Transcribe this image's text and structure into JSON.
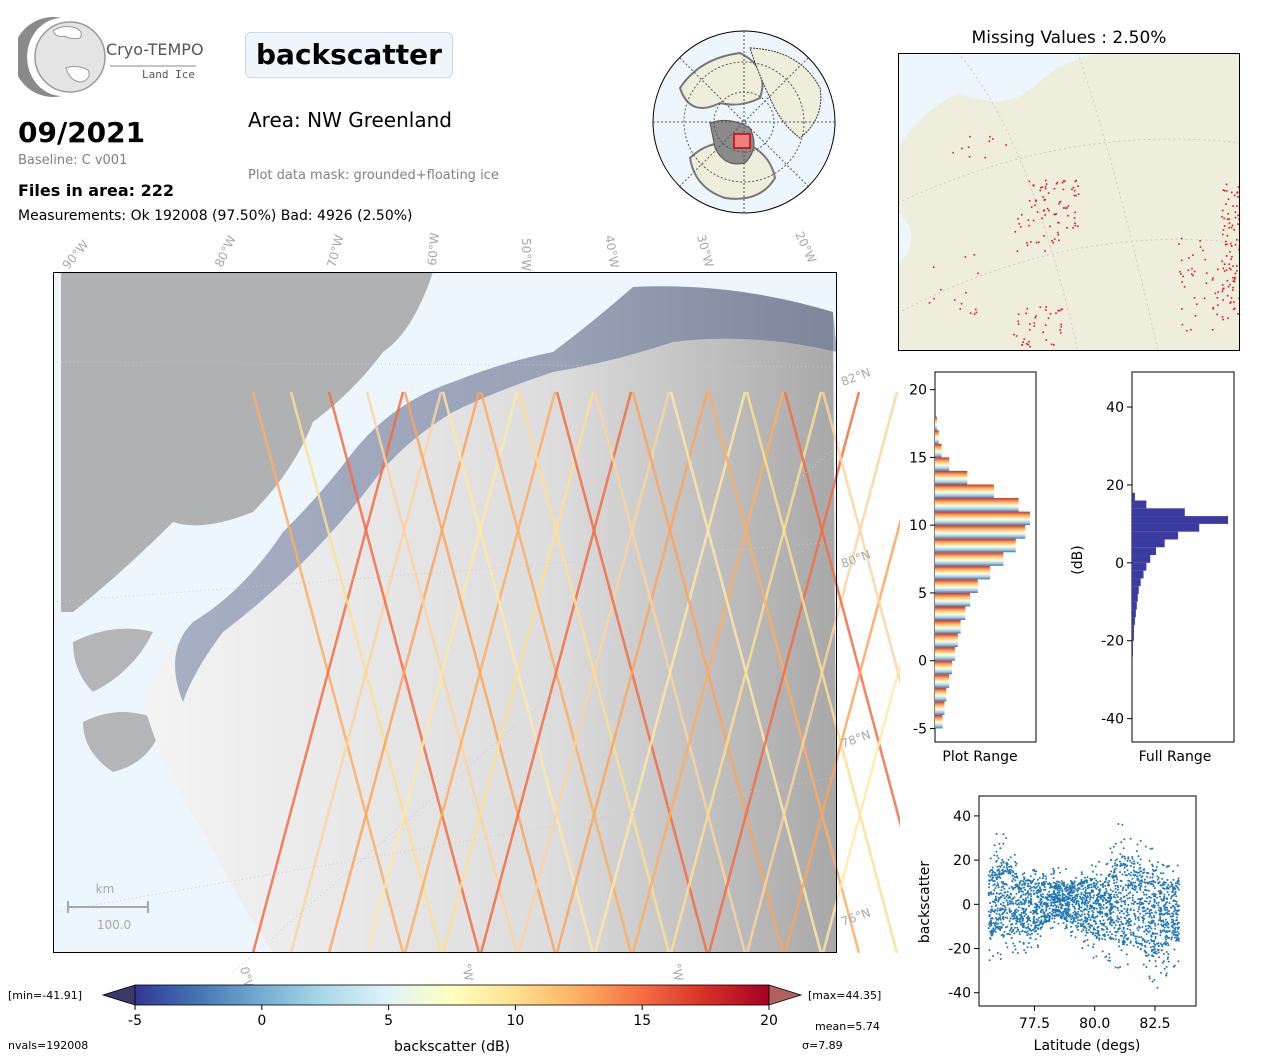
{
  "logo": {
    "name": "Cryo-TEMPO",
    "subtitle": "Land Ice"
  },
  "header": {
    "date": "09/2021",
    "baseline": "Baseline: C v001",
    "files": "Files in area: 222",
    "measurements": "Measurements: Ok 192008 (97.50%) Bad: 4926 (2.50%)",
    "parameter": "backscatter",
    "area": "Area: NW Greenland",
    "mask": "Plot data mask: grounded+floating ice"
  },
  "missing": {
    "title": "Missing Values : 2.50%"
  },
  "main_map": {
    "lon_labels": [
      "90°W",
      "80°W",
      "70°W",
      "60°W",
      "50°W",
      "40°W",
      "30°W",
      "20°W"
    ],
    "lat_labels": [
      "82°N",
      "80°N",
      "78°N",
      "76°N"
    ],
    "bottom_lon_labels": [
      "0°W",
      "°W",
      "°W"
    ],
    "scale_unit": "km",
    "scale_value": "100.0"
  },
  "colorbar": {
    "label": "backscatter (dB)",
    "ticks": [
      "-5",
      "0",
      "5",
      "10",
      "15",
      "20"
    ],
    "min_label": "[min=-41.91]",
    "max_label": "[max=44.35]",
    "mean": "mean=5.74",
    "sigma": "σ=7.89",
    "nvals": "nvals=192008"
  },
  "colors": {
    "land": "#efeedc",
    "ocean": "#eef6fd",
    "missing_marks": "#e0141e",
    "full_hist": "#3a3aa0",
    "scatter": "#1f77b4"
  },
  "chart_data": [
    {
      "type": "bar",
      "name": "plot_range_histogram",
      "xlabel": "Plot Range",
      "ylim": [
        -6,
        21.3
      ],
      "yticks": [
        "-5",
        "0",
        "5",
        "10",
        "15",
        "20"
      ],
      "bin_centers": [
        -4.5,
        -3.5,
        -2.5,
        -1.5,
        -0.5,
        0.5,
        1.5,
        2.5,
        3.5,
        4.5,
        5.5,
        6.5,
        7.5,
        8.5,
        9.5,
        10.5,
        11.5,
        12.5,
        13.5,
        14.5,
        15.5,
        16.5,
        17.5
      ],
      "values": [
        0.08,
        0.1,
        0.12,
        0.15,
        0.18,
        0.21,
        0.24,
        0.27,
        0.32,
        0.37,
        0.45,
        0.58,
        0.72,
        0.85,
        0.95,
        1.0,
        0.88,
        0.62,
        0.34,
        0.15,
        0.07,
        0.04,
        0.02
      ]
    },
    {
      "type": "bar",
      "name": "full_range_histogram",
      "xlabel": "Full Range",
      "ylabel": "(dB)",
      "ylim": [
        -46,
        49
      ],
      "yticks": [
        "-40",
        "-20",
        "0",
        "20",
        "40"
      ],
      "bin_centers": [
        -25,
        -23,
        -21,
        -19,
        -17,
        -15,
        -13,
        -11,
        -9,
        -7,
        -5,
        -3,
        -1,
        1,
        3,
        5,
        7,
        9,
        11,
        13,
        15,
        17
      ],
      "values": [
        0.0,
        0.01,
        0.01,
        0.02,
        0.02,
        0.03,
        0.04,
        0.05,
        0.06,
        0.07,
        0.09,
        0.12,
        0.15,
        0.19,
        0.25,
        0.34,
        0.48,
        0.7,
        1.0,
        0.55,
        0.15,
        0.03
      ]
    },
    {
      "type": "scatter",
      "name": "latitude_scatter",
      "xlabel": "Latitude (degs)",
      "ylabel": "backscatter",
      "xlim": [
        75.2,
        84.2
      ],
      "ylim": [
        -46,
        49
      ],
      "xticks": [
        "77.5",
        "80.0",
        "82.5"
      ],
      "yticks": [
        "-40",
        "-20",
        "0",
        "20",
        "40"
      ],
      "x": [
        75.6,
        76.0,
        76.5,
        77.0,
        77.5,
        78.0,
        78.5,
        79.0,
        79.5,
        80.0,
        80.5,
        81.0,
        81.5,
        82.0,
        82.5,
        83.0,
        83.5
      ],
      "upper": [
        22,
        36,
        30,
        19,
        18,
        17,
        18,
        16,
        18,
        20,
        20,
        38,
        36,
        28,
        26,
        18,
        19
      ],
      "lower": [
        -26,
        -27,
        -22,
        -23,
        -22,
        -14,
        -10,
        -14,
        -20,
        -26,
        -25,
        -30,
        -31,
        -35,
        -40,
        -32,
        -30
      ]
    }
  ]
}
